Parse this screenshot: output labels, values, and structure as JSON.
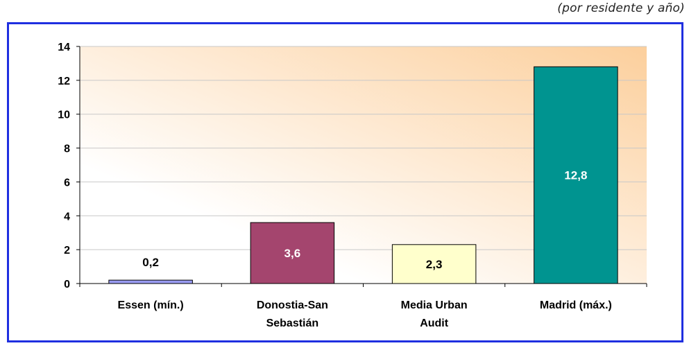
{
  "note": "(por residente y año)",
  "chart_data": {
    "type": "bar",
    "title": "",
    "xlabel": "",
    "ylabel": "",
    "ylim": [
      0,
      14
    ],
    "yticks": [
      "0",
      "2",
      "4",
      "6",
      "8",
      "10",
      "12",
      "14"
    ],
    "grid": true,
    "legend": "none",
    "categories": [
      [
        "Essen (mín.)"
      ],
      [
        "Donostia-San",
        "Sebastián"
      ],
      [
        "Media Urban",
        "Audit"
      ],
      [
        "Madrid (máx.)"
      ]
    ],
    "values": [
      0.2,
      3.6,
      2.3,
      12.8
    ],
    "data_labels": [
      "0,2",
      "3,6",
      "2,3",
      "12,8"
    ],
    "bar_colors": [
      "#9a9cf2",
      "#a4456e",
      "#ffffcc",
      "#009490"
    ],
    "label_colors": [
      "#000000",
      "#ffffff",
      "#000000",
      "#ffffff"
    ],
    "background_gradient": [
      "#ffffff",
      "#fccf9c"
    ]
  }
}
